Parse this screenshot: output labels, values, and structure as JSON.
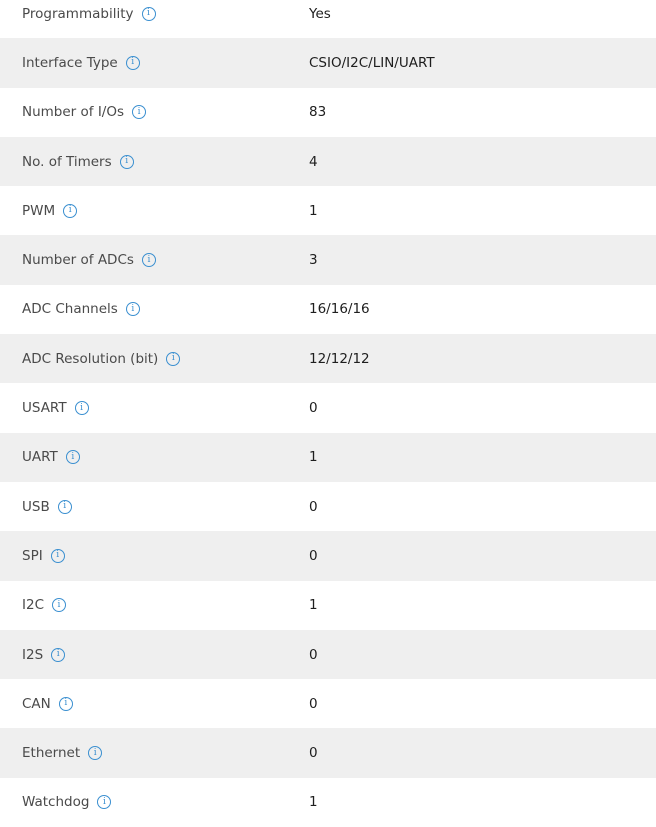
{
  "colors": {
    "info_icon": "#3a8fd0",
    "stripe": "#efefef"
  },
  "rows": [
    {
      "label": "Programmability",
      "value": "Yes"
    },
    {
      "label": "Interface Type",
      "value": "CSIO/I2C/LIN/UART"
    },
    {
      "label": "Number of I/Os",
      "value": "83"
    },
    {
      "label": "No. of Timers",
      "value": "4"
    },
    {
      "label": "PWM",
      "value": "1"
    },
    {
      "label": "Number of ADCs",
      "value": "3"
    },
    {
      "label": "ADC Channels",
      "value": "16/16/16"
    },
    {
      "label": "ADC Resolution (bit)",
      "value": "12/12/12"
    },
    {
      "label": "USART",
      "value": "0"
    },
    {
      "label": "UART",
      "value": "1"
    },
    {
      "label": "USB",
      "value": "0"
    },
    {
      "label": "SPI",
      "value": "0"
    },
    {
      "label": "I2C",
      "value": "1"
    },
    {
      "label": "I2S",
      "value": "0"
    },
    {
      "label": "CAN",
      "value": "0"
    },
    {
      "label": "Ethernet",
      "value": "0"
    },
    {
      "label": "Watchdog",
      "value": "1"
    }
  ]
}
